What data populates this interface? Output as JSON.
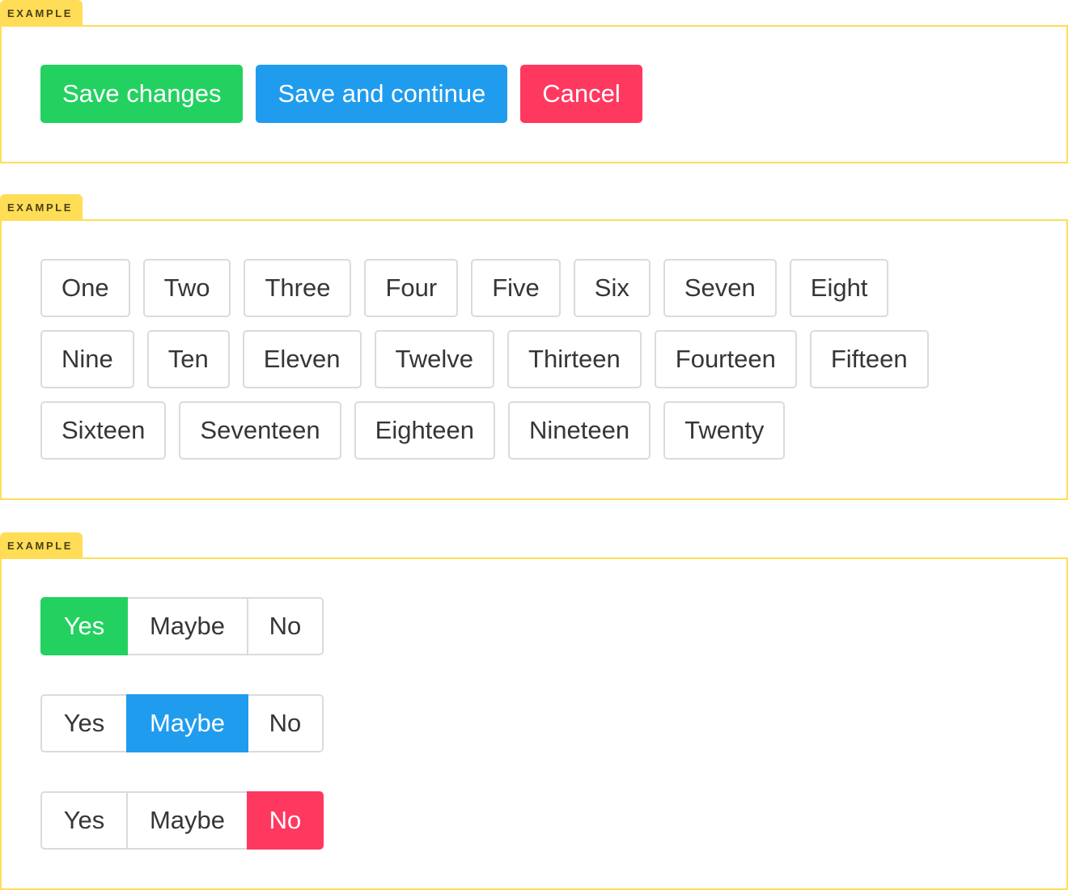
{
  "example_label": "EXAMPLE",
  "colors": {
    "success": "#23d160",
    "info": "#209cee",
    "danger": "#ff3860",
    "tag_yellow": "#ffdd57"
  },
  "actions": {
    "save": "Save changes",
    "save_continue": "Save and continue",
    "cancel": "Cancel"
  },
  "tags": [
    "One",
    "Two",
    "Three",
    "Four",
    "Five",
    "Six",
    "Seven",
    "Eight",
    "Nine",
    "Ten",
    "Eleven",
    "Twelve",
    "Thirteen",
    "Fourteen",
    "Fifteen",
    "Sixteen",
    "Seventeen",
    "Eighteen",
    "Nineteen",
    "Twenty"
  ],
  "segments": {
    "options": [
      "Yes",
      "Maybe",
      "No"
    ],
    "groups": [
      {
        "selected": "Yes"
      },
      {
        "selected": "Maybe"
      },
      {
        "selected": "No"
      }
    ]
  }
}
